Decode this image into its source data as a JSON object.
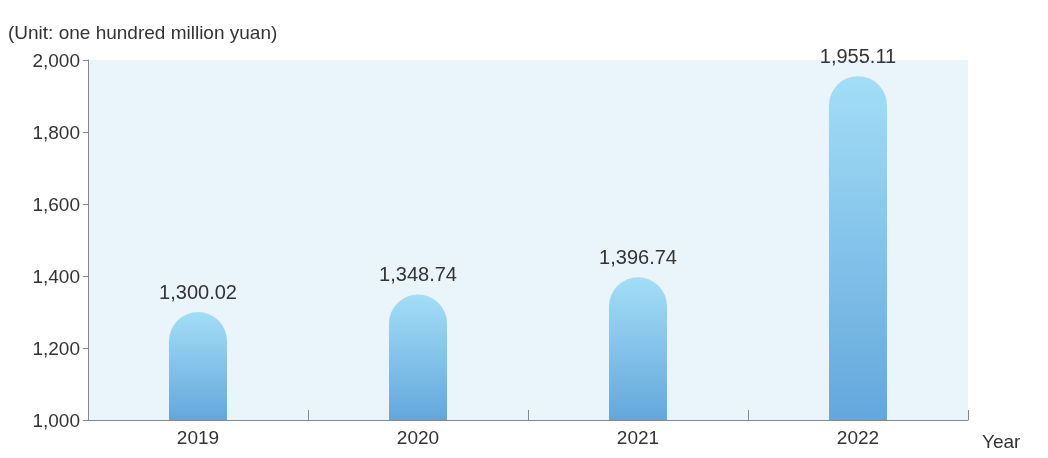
{
  "chart_data": {
    "type": "bar",
    "ylabel": "(Unit: one hundred million yuan)",
    "xlabel": "Year",
    "categories": [
      "2019",
      "2020",
      "2021",
      "2022"
    ],
    "values": [
      1300.02,
      1348.74,
      1396.74,
      1955.11
    ],
    "value_labels": [
      "1,300.02",
      "1,348.74",
      "1,396.74",
      "1,955.11"
    ],
    "color": "#64a7dc",
    "ylim": [
      1000,
      2000
    ],
    "yticks": [
      {
        "value": 1000,
        "label": "1,000"
      },
      {
        "value": 1200,
        "label": "1,200"
      },
      {
        "value": 1400,
        "label": "1,400"
      },
      {
        "value": 1600,
        "label": "1,600"
      },
      {
        "value": 1800,
        "label": "1,800"
      },
      {
        "value": 2000,
        "label": "2,000"
      }
    ],
    "grid": false
  }
}
